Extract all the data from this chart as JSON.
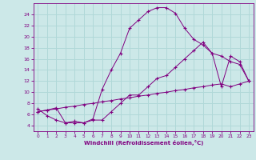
{
  "xlabel": "Windchill (Refroidissement éolien,°C)",
  "bg_color": "#cce8e8",
  "line_color": "#800080",
  "grid_color": "#b0d8d8",
  "xlim": [
    -0.5,
    23.5
  ],
  "ylim": [
    3,
    26
  ],
  "yticks": [
    4,
    6,
    8,
    10,
    12,
    14,
    16,
    18,
    20,
    22,
    24
  ],
  "xticks": [
    0,
    1,
    2,
    3,
    4,
    5,
    6,
    7,
    8,
    9,
    10,
    11,
    12,
    13,
    14,
    15,
    16,
    17,
    18,
    19,
    20,
    21,
    22,
    23
  ],
  "line1_x": [
    0,
    1,
    2,
    3,
    4,
    5,
    6,
    7,
    8,
    9,
    10,
    11,
    12,
    13,
    14,
    15,
    16,
    17,
    18,
    19,
    20,
    21,
    22,
    23
  ],
  "line1_y": [
    7.0,
    5.8,
    5.0,
    4.5,
    4.8,
    4.5,
    5.2,
    10.5,
    14.0,
    17.0,
    21.5,
    23.0,
    24.5,
    25.2,
    25.2,
    24.2,
    21.5,
    19.5,
    18.5,
    17.0,
    11.0,
    16.5,
    15.5,
    12.0
  ],
  "line2_x": [
    0,
    1,
    2,
    3,
    4,
    5,
    6,
    7,
    8,
    9,
    10,
    11,
    12,
    13,
    14,
    15,
    16,
    17,
    18,
    19,
    20,
    21,
    22,
    23
  ],
  "line2_y": [
    6.5,
    6.8,
    7.0,
    7.3,
    7.5,
    7.8,
    8.0,
    8.3,
    8.5,
    8.8,
    9.0,
    9.3,
    9.5,
    9.8,
    10.0,
    10.3,
    10.5,
    10.8,
    11.0,
    11.3,
    11.5,
    11.0,
    11.5,
    12.0
  ],
  "line3_x": [
    0,
    1,
    2,
    3,
    4,
    5,
    6,
    7,
    8,
    9,
    10,
    11,
    12,
    13,
    14,
    15,
    16,
    17,
    18,
    19,
    20,
    21,
    22,
    23
  ],
  "line3_y": [
    6.5,
    6.8,
    7.2,
    4.5,
    4.5,
    4.5,
    5.0,
    5.0,
    6.5,
    8.0,
    9.5,
    9.5,
    11.0,
    12.5,
    13.0,
    14.5,
    16.0,
    17.5,
    19.0,
    17.0,
    16.5,
    15.5,
    15.0,
    12.0
  ]
}
